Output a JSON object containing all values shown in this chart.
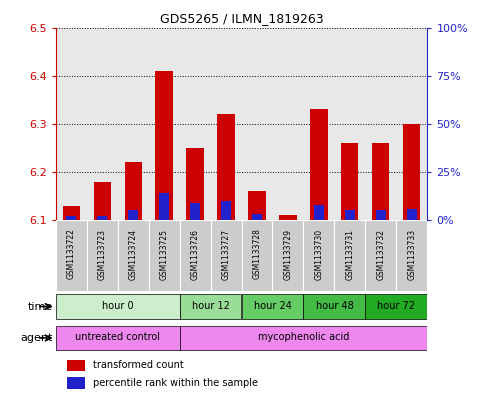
{
  "title": "GDS5265 / ILMN_1819263",
  "samples": [
    "GSM1133722",
    "GSM1133723",
    "GSM1133724",
    "GSM1133725",
    "GSM1133726",
    "GSM1133727",
    "GSM1133728",
    "GSM1133729",
    "GSM1133730",
    "GSM1133731",
    "GSM1133732",
    "GSM1133733"
  ],
  "red_values": [
    6.13,
    6.18,
    6.22,
    6.41,
    6.25,
    6.32,
    6.16,
    6.11,
    6.33,
    6.26,
    6.26,
    6.3
  ],
  "blue_values": [
    2,
    2,
    5,
    14,
    9,
    10,
    3,
    0,
    8,
    5,
    5,
    6
  ],
  "ylim_left": [
    6.1,
    6.5
  ],
  "ylim_right": [
    0,
    100
  ],
  "yticks_left": [
    6.1,
    6.2,
    6.3,
    6.4,
    6.5
  ],
  "yticks_right": [
    0,
    25,
    50,
    75,
    100
  ],
  "ytick_labels_right": [
    "0%",
    "25%",
    "50%",
    "75%",
    "100%"
  ],
  "bar_bottom": 6.1,
  "bar_color_red": "#cc0000",
  "bar_color_blue": "#2222cc",
  "bar_width": 0.55,
  "blue_bar_width": 0.35,
  "tick_color_left": "#cc0000",
  "tick_color_right": "#2222cc",
  "sample_bg_color": "#cccccc",
  "time_groups": [
    {
      "label": "hour 0",
      "start": 0,
      "end": 3,
      "color": "#cceecc"
    },
    {
      "label": "hour 12",
      "start": 4,
      "end": 5,
      "color": "#99dd99"
    },
    {
      "label": "hour 24",
      "start": 6,
      "end": 7,
      "color": "#66cc66"
    },
    {
      "label": "hour 48",
      "start": 8,
      "end": 9,
      "color": "#44aa44"
    },
    {
      "label": "hour 72",
      "start": 10,
      "end": 11,
      "color": "#22aa22"
    }
  ],
  "agent_groups": [
    {
      "label": "untreated control",
      "start": 0,
      "end": 3,
      "color": "#ee88ee"
    },
    {
      "label": "mycophenolic acid",
      "start": 4,
      "end": 11,
      "color": "#ee88ee"
    }
  ]
}
